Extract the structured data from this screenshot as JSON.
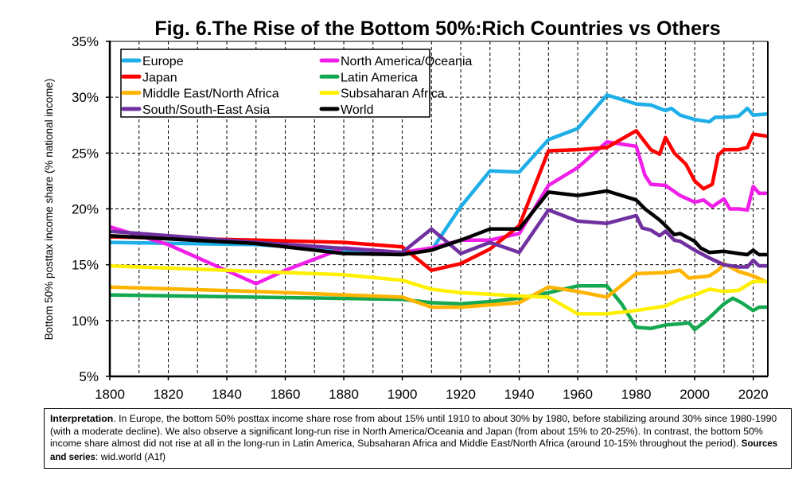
{
  "chart_data": {
    "type": "line",
    "title": "Fig. 6.The Rise of the Bottom 50%:Rich Countries vs Others",
    "xlabel": "",
    "ylabel": "Bottom 50% posttax income share (% national income)",
    "xlim": [
      1800,
      2025
    ],
    "ylim": [
      5,
      35
    ],
    "x_ticks": [
      "1800",
      "1820",
      "1840",
      "1860",
      "1880",
      "1900",
      "1920",
      "1940",
      "1960",
      "1980",
      "2000",
      "2020"
    ],
    "y_ticks": [
      "5%",
      "10%",
      "15%",
      "20%",
      "25%",
      "30%",
      "35%"
    ],
    "grid": true,
    "legend_placement": "top-left",
    "series": [
      {
        "name": "Europe",
        "color": "#1EAEE8",
        "points": [
          [
            1800,
            17.0
          ],
          [
            1850,
            16.8
          ],
          [
            1900,
            16.0
          ],
          [
            1910,
            16.3
          ],
          [
            1920,
            20.2
          ],
          [
            1930,
            23.4
          ],
          [
            1940,
            23.3
          ],
          [
            1950,
            26.2
          ],
          [
            1960,
            27.2
          ],
          [
            1970,
            30.2
          ],
          [
            1980,
            29.4
          ],
          [
            1985,
            29.3
          ],
          [
            1990,
            28.8
          ],
          [
            1992,
            29.0
          ],
          [
            1995,
            28.4
          ],
          [
            2000,
            28.0
          ],
          [
            2005,
            27.8
          ],
          [
            2007,
            28.2
          ],
          [
            2010,
            28.2
          ],
          [
            2015,
            28.3
          ],
          [
            2018,
            29.0
          ],
          [
            2020,
            28.4
          ],
          [
            2025,
            28.5
          ]
        ]
      },
      {
        "name": "North America/Oceania",
        "color": "#F01EE8",
        "points": [
          [
            1800,
            18.4
          ],
          [
            1820,
            16.8
          ],
          [
            1850,
            13.3
          ],
          [
            1860,
            14.5
          ],
          [
            1880,
            16.5
          ],
          [
            1900,
            16.1
          ],
          [
            1910,
            16.5
          ],
          [
            1920,
            17.2
          ],
          [
            1930,
            17.2
          ],
          [
            1940,
            17.8
          ],
          [
            1950,
            22.1
          ],
          [
            1960,
            23.7
          ],
          [
            1970,
            26.0
          ],
          [
            1980,
            25.6
          ],
          [
            1983,
            23.0
          ],
          [
            1985,
            22.2
          ],
          [
            1990,
            22.1
          ],
          [
            1995,
            21.2
          ],
          [
            2000,
            20.6
          ],
          [
            2003,
            20.8
          ],
          [
            2006,
            20.2
          ],
          [
            2010,
            20.9
          ],
          [
            2012,
            20.0
          ],
          [
            2015,
            20.0
          ],
          [
            2018,
            19.9
          ],
          [
            2020,
            22.0
          ],
          [
            2022,
            21.4
          ],
          [
            2025,
            21.4
          ]
        ]
      },
      {
        "name": "Japan",
        "color": "#FF0000",
        "points": [
          [
            1800,
            17.5
          ],
          [
            1850,
            17.2
          ],
          [
            1880,
            17.0
          ],
          [
            1900,
            16.6
          ],
          [
            1910,
            14.5
          ],
          [
            1920,
            15.1
          ],
          [
            1930,
            16.4
          ],
          [
            1940,
            18.5
          ],
          [
            1950,
            25.2
          ],
          [
            1960,
            25.3
          ],
          [
            1970,
            25.5
          ],
          [
            1980,
            27.0
          ],
          [
            1985,
            25.3
          ],
          [
            1988,
            24.9
          ],
          [
            1990,
            26.4
          ],
          [
            1993,
            25.0
          ],
          [
            1997,
            24.0
          ],
          [
            2000,
            22.5
          ],
          [
            2003,
            21.8
          ],
          [
            2006,
            22.2
          ],
          [
            2008,
            24.8
          ],
          [
            2010,
            25.3
          ],
          [
            2015,
            25.3
          ],
          [
            2018,
            25.5
          ],
          [
            2020,
            26.7
          ],
          [
            2025,
            26.5
          ]
        ]
      },
      {
        "name": "Latin America",
        "color": "#14A850",
        "points": [
          [
            1800,
            12.3
          ],
          [
            1900,
            11.9
          ],
          [
            1910,
            11.6
          ],
          [
            1920,
            11.5
          ],
          [
            1930,
            11.7
          ],
          [
            1940,
            12.0
          ],
          [
            1950,
            12.5
          ],
          [
            1960,
            13.1
          ],
          [
            1970,
            13.1
          ],
          [
            1975,
            11.5
          ],
          [
            1980,
            9.4
          ],
          [
            1985,
            9.3
          ],
          [
            1990,
            9.6
          ],
          [
            1995,
            9.7
          ],
          [
            1998,
            9.8
          ],
          [
            2000,
            9.2
          ],
          [
            2003,
            9.8
          ],
          [
            2006,
            10.5
          ],
          [
            2010,
            11.5
          ],
          [
            2013,
            12.0
          ],
          [
            2016,
            11.6
          ],
          [
            2020,
            10.9
          ],
          [
            2022,
            11.2
          ],
          [
            2025,
            11.2
          ]
        ]
      },
      {
        "name": "Middle East/North Africa",
        "color": "#FFB400",
        "points": [
          [
            1800,
            13.0
          ],
          [
            1850,
            12.6
          ],
          [
            1900,
            12.1
          ],
          [
            1910,
            11.2
          ],
          [
            1920,
            11.2
          ],
          [
            1940,
            11.6
          ],
          [
            1950,
            13.0
          ],
          [
            1960,
            12.6
          ],
          [
            1970,
            12.1
          ],
          [
            1980,
            14.2
          ],
          [
            1990,
            14.3
          ],
          [
            1995,
            14.5
          ],
          [
            1998,
            13.8
          ],
          [
            2005,
            14.0
          ],
          [
            2008,
            14.5
          ],
          [
            2010,
            15.1
          ],
          [
            2015,
            14.4
          ],
          [
            2020,
            14.0
          ],
          [
            2025,
            13.4
          ]
        ]
      },
      {
        "name": "Subsaharan Africa",
        "color": "#FFF000",
        "points": [
          [
            1800,
            14.9
          ],
          [
            1850,
            14.4
          ],
          [
            1880,
            14.1
          ],
          [
            1900,
            13.6
          ],
          [
            1910,
            12.8
          ],
          [
            1920,
            12.5
          ],
          [
            1940,
            12.2
          ],
          [
            1950,
            12.1
          ],
          [
            1960,
            10.6
          ],
          [
            1970,
            10.6
          ],
          [
            1980,
            10.9
          ],
          [
            1990,
            11.3
          ],
          [
            1995,
            11.9
          ],
          [
            2000,
            12.3
          ],
          [
            2005,
            12.8
          ],
          [
            2010,
            12.6
          ],
          [
            2015,
            12.7
          ],
          [
            2020,
            13.5
          ],
          [
            2025,
            13.5
          ]
        ]
      },
      {
        "name": "South/South-East Asia",
        "color": "#7030A0",
        "points": [
          [
            1800,
            18.0
          ],
          [
            1850,
            17.0
          ],
          [
            1900,
            16.1
          ],
          [
            1910,
            18.2
          ],
          [
            1920,
            16.0
          ],
          [
            1930,
            17.0
          ],
          [
            1940,
            16.1
          ],
          [
            1950,
            19.9
          ],
          [
            1960,
            18.9
          ],
          [
            1970,
            18.7
          ],
          [
            1980,
            19.4
          ],
          [
            1982,
            18.3
          ],
          [
            1985,
            18.1
          ],
          [
            1988,
            17.6
          ],
          [
            1990,
            18.0
          ],
          [
            1993,
            17.2
          ],
          [
            1995,
            17.1
          ],
          [
            2000,
            16.3
          ],
          [
            2005,
            15.6
          ],
          [
            2010,
            15.0
          ],
          [
            2015,
            14.8
          ],
          [
            2018,
            14.8
          ],
          [
            2020,
            15.4
          ],
          [
            2022,
            14.9
          ],
          [
            2025,
            14.9
          ]
        ]
      },
      {
        "name": "World",
        "color": "#000000",
        "points": [
          [
            1800,
            17.6
          ],
          [
            1850,
            16.9
          ],
          [
            1880,
            16.0
          ],
          [
            1900,
            15.9
          ],
          [
            1910,
            16.3
          ],
          [
            1920,
            17.2
          ],
          [
            1930,
            18.2
          ],
          [
            1940,
            18.2
          ],
          [
            1950,
            21.5
          ],
          [
            1960,
            21.2
          ],
          [
            1970,
            21.6
          ],
          [
            1980,
            20.8
          ],
          [
            1983,
            20.0
          ],
          [
            1985,
            19.6
          ],
          [
            1988,
            19.0
          ],
          [
            1990,
            18.5
          ],
          [
            1993,
            17.7
          ],
          [
            1995,
            17.8
          ],
          [
            2000,
            17.1
          ],
          [
            2002,
            16.5
          ],
          [
            2005,
            16.1
          ],
          [
            2010,
            16.2
          ],
          [
            2015,
            16.0
          ],
          [
            2018,
            15.9
          ],
          [
            2020,
            16.3
          ],
          [
            2022,
            15.9
          ],
          [
            2025,
            15.9
          ]
        ]
      }
    ]
  },
  "note": {
    "lead": "Interpretation",
    "body": ". In Europe, the bottom 50% posttax income share rose from about 15% until 1910 to about 30% by 1980, before stabilizing around 30% since 1980-1990 (with a moderate decline). We also observe a significant long-run rise in North America/Oceania and Japan (from about 15% to 20-25%). In contrast, the bottom 50% income share almost did not rise at all in the long-run in Latin America, Subsaharan Africa and Middle East/North Africa (around 10-15% throughout the period). ",
    "sources_label": "Sources and series",
    "sources_value": ": wid.world (A1f)"
  }
}
